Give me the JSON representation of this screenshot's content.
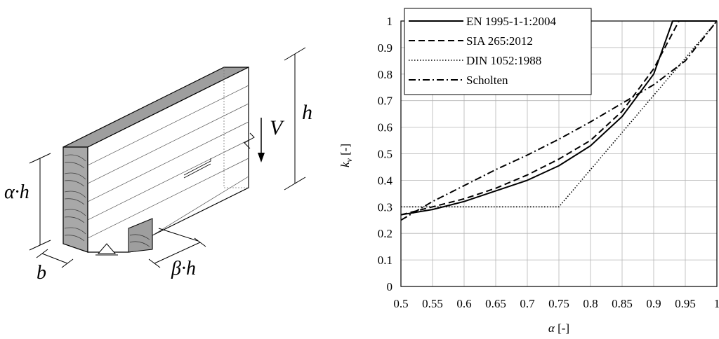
{
  "diagram": {
    "labels": {
      "h": "h",
      "v": "V",
      "alpha_h": "α·h",
      "b": "b",
      "beta_h": "β·h"
    }
  },
  "chart_data": {
    "type": "line",
    "xlabel_symbol": "α",
    "xlabel_unit": " [-]",
    "ylabel_symbol": "k",
    "ylabel_subscript": "v",
    "ylabel_unit": " [-]",
    "xlim": [
      0.5,
      1.0
    ],
    "ylim": [
      0,
      1.0
    ],
    "xticks": [
      "0.5",
      "0.55",
      "0.6",
      "0.65",
      "0.7",
      "0.75",
      "0.8",
      "0.85",
      "0.9",
      "0.95",
      "1"
    ],
    "yticks": [
      "0",
      "0.1",
      "0.2",
      "0.3",
      "0.4",
      "0.5",
      "0.6",
      "0.7",
      "0.8",
      "0.9",
      "1"
    ],
    "grid": true,
    "legend_position": "top-left",
    "series": [
      {
        "name": "EN 1995-1-1:2004",
        "style": "solid",
        "x": [
          0.5,
          0.55,
          0.6,
          0.65,
          0.7,
          0.75,
          0.8,
          0.85,
          0.9,
          0.93,
          0.95,
          1.0
        ],
        "y": [
          0.27,
          0.29,
          0.32,
          0.36,
          0.4,
          0.455,
          0.53,
          0.64,
          0.8,
          1.0,
          1.0,
          1.0
        ]
      },
      {
        "name": "SIA 265:2012",
        "style": "dashed",
        "x": [
          0.5,
          0.55,
          0.6,
          0.65,
          0.7,
          0.75,
          0.8,
          0.85,
          0.9,
          0.94,
          0.95,
          1.0
        ],
        "y": [
          0.27,
          0.3,
          0.33,
          0.37,
          0.42,
          0.48,
          0.55,
          0.66,
          0.82,
          1.0,
          1.0,
          1.0
        ]
      },
      {
        "name": "DIN 1052:1988",
        "style": "dotted",
        "x": [
          0.5,
          0.75,
          1.0
        ],
        "y": [
          0.3,
          0.3,
          1.0
        ]
      },
      {
        "name": "Scholten",
        "style": "dashdot",
        "x": [
          0.5,
          0.55,
          0.6,
          0.65,
          0.7,
          0.75,
          0.8,
          0.85,
          0.9,
          0.95,
          1.0
        ],
        "y": [
          0.25,
          0.32,
          0.38,
          0.44,
          0.495,
          0.555,
          0.62,
          0.69,
          0.76,
          0.85,
          1.0
        ]
      }
    ]
  }
}
